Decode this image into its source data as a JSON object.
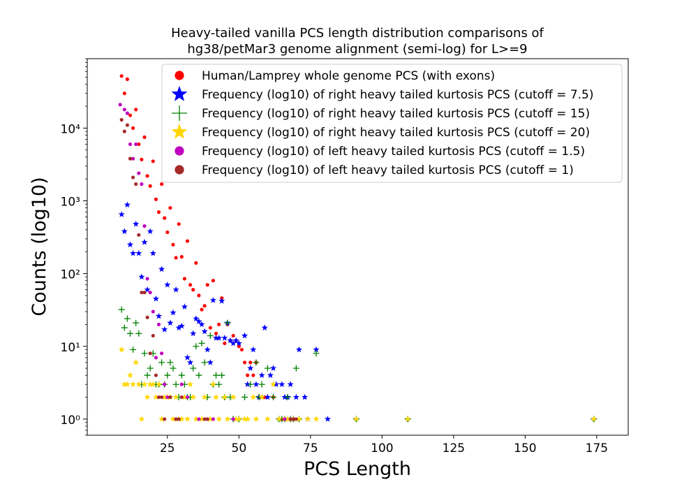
{
  "chart_data": {
    "type": "scatter",
    "title_line1": "Heavy-tailed vanilla PCS length distribution comparisons of",
    "title_line2": "hg38/petMar3 genome alignment (semi-log) for L>=9",
    "xlabel": "PCS Length",
    "ylabel": "Counts (log10)",
    "yscale": "log",
    "xlim": [
      -3,
      186
    ],
    "ylim": [
      0.6,
      90000
    ],
    "xticks": [
      25,
      50,
      75,
      100,
      125,
      150,
      175
    ],
    "yticks": [
      {
        "value": 1,
        "label": "10⁰"
      },
      {
        "value": 10,
        "label": "10¹"
      },
      {
        "value": 100,
        "label": "10²"
      },
      {
        "value": 1000,
        "label": "10³"
      },
      {
        "value": 10000,
        "label": "10⁴"
      }
    ],
    "legend_position": "top-right",
    "series": [
      {
        "name": "Human/Lamprey whole genome PCS (with exons)",
        "marker": "circle",
        "color": "#ff0000",
        "points": [
          [
            9,
            52000
          ],
          [
            10,
            30000
          ],
          [
            11,
            47000
          ],
          [
            12,
            15000
          ],
          [
            13,
            10000
          ],
          [
            14,
            18000
          ],
          [
            15,
            6000
          ],
          [
            16,
            3700
          ],
          [
            17,
            7500
          ],
          [
            18,
            2200
          ],
          [
            19,
            1600
          ],
          [
            20,
            3500
          ],
          [
            21,
            1050
          ],
          [
            22,
            700
          ],
          [
            23,
            1700
          ],
          [
            24,
            580
          ],
          [
            25,
            370
          ],
          [
            26,
            800
          ],
          [
            27,
            250
          ],
          [
            28,
            165
          ],
          [
            29,
            480
          ],
          [
            30,
            170
          ],
          [
            31,
            85
          ],
          [
            32,
            280
          ],
          [
            33,
            70
          ],
          [
            34,
            60
          ],
          [
            35,
            140
          ],
          [
            36,
            50
          ],
          [
            37,
            32
          ],
          [
            38,
            36
          ],
          [
            39,
            70
          ],
          [
            40,
            18
          ],
          [
            41,
            80
          ],
          [
            42,
            15
          ],
          [
            43,
            20
          ],
          [
            44,
            46
          ],
          [
            45,
            11
          ],
          [
            46,
            20
          ],
          [
            47,
            12
          ],
          [
            48,
            14
          ],
          [
            49,
            12
          ],
          [
            50,
            10
          ],
          [
            51,
            9
          ],
          [
            52,
            6
          ],
          [
            53,
            4
          ],
          [
            54,
            6
          ],
          [
            55,
            4
          ],
          [
            56,
            6
          ],
          [
            57,
            2
          ],
          [
            58,
            2
          ],
          [
            59,
            2
          ],
          [
            62,
            2
          ],
          [
            65,
            1
          ],
          [
            66,
            1
          ],
          [
            67,
            1
          ],
          [
            68,
            1
          ]
        ]
      },
      {
        "name": "Frequency (log10) of right heavy tailed kurtosis PCS (cutoff = 7.5)",
        "marker": "star",
        "color": "#0000ff",
        "points": [
          [
            9,
            650
          ],
          [
            10,
            380
          ],
          [
            11,
            880
          ],
          [
            12,
            250
          ],
          [
            13,
            190
          ],
          [
            14,
            480
          ],
          [
            15,
            190
          ],
          [
            16,
            90
          ],
          [
            17,
            270
          ],
          [
            18,
            60
          ],
          [
            19,
            380
          ],
          [
            20,
            190
          ],
          [
            21,
            45
          ],
          [
            22,
            26
          ],
          [
            23,
            115
          ],
          [
            24,
            17
          ],
          [
            25,
            70
          ],
          [
            26,
            21
          ],
          [
            27,
            29
          ],
          [
            28,
            60
          ],
          [
            29,
            18
          ],
          [
            30,
            19
          ],
          [
            31,
            35
          ],
          [
            32,
            7
          ],
          [
            33,
            6
          ],
          [
            34,
            15
          ],
          [
            35,
            24
          ],
          [
            36,
            22
          ],
          [
            37,
            20
          ],
          [
            38,
            16
          ],
          [
            39,
            9
          ],
          [
            40,
            6
          ],
          [
            41,
            43
          ],
          [
            42,
            13
          ],
          [
            43,
            13
          ],
          [
            44,
            42
          ],
          [
            45,
            13
          ],
          [
            46,
            21
          ],
          [
            47,
            12
          ],
          [
            48,
            11
          ],
          [
            49,
            12
          ],
          [
            50,
            11
          ],
          [
            52,
            14
          ],
          [
            53,
            3
          ],
          [
            54,
            5
          ],
          [
            55,
            9
          ],
          [
            56,
            3
          ],
          [
            57,
            2
          ],
          [
            58,
            4
          ],
          [
            59,
            18
          ],
          [
            60,
            2
          ],
          [
            61,
            4
          ],
          [
            62,
            5
          ],
          [
            63,
            3
          ],
          [
            64,
            1
          ],
          [
            65,
            3
          ],
          [
            66,
            2
          ],
          [
            67,
            2
          ],
          [
            68,
            3
          ],
          [
            69,
            1
          ],
          [
            70,
            2
          ],
          [
            71,
            9
          ],
          [
            73,
            2
          ],
          [
            74,
            1
          ],
          [
            77,
            9
          ],
          [
            81,
            1
          ],
          [
            91,
            1
          ],
          [
            109,
            1
          ],
          [
            174,
            1
          ]
        ]
      },
      {
        "name": "Frequency (log10) of right heavy tailed kurtosis PCS (cutoff = 15)",
        "marker": "plus",
        "color": "#008000",
        "points": [
          [
            9,
            32
          ],
          [
            10,
            18
          ],
          [
            11,
            24
          ],
          [
            12,
            15
          ],
          [
            13,
            9
          ],
          [
            14,
            21
          ],
          [
            15,
            15
          ],
          [
            16,
            3
          ],
          [
            17,
            8
          ],
          [
            18,
            4
          ],
          [
            19,
            5
          ],
          [
            20,
            8
          ],
          [
            21,
            3
          ],
          [
            22,
            3
          ],
          [
            23,
            6
          ],
          [
            24,
            3
          ],
          [
            25,
            4
          ],
          [
            26,
            6
          ],
          [
            27,
            5
          ],
          [
            28,
            3
          ],
          [
            29,
            2
          ],
          [
            30,
            4
          ],
          [
            31,
            3
          ],
          [
            32,
            2
          ],
          [
            33,
            2
          ],
          [
            34,
            5
          ],
          [
            35,
            10
          ],
          [
            36,
            4
          ],
          [
            37,
            11
          ],
          [
            38,
            6
          ],
          [
            39,
            2
          ],
          [
            40,
            14
          ],
          [
            41,
            3
          ],
          [
            42,
            4
          ],
          [
            43,
            3
          ],
          [
            44,
            4
          ],
          [
            45,
            2
          ],
          [
            46,
            21
          ],
          [
            47,
            2
          ],
          [
            48,
            1
          ],
          [
            50,
            1
          ],
          [
            52,
            2
          ],
          [
            54,
            3
          ],
          [
            56,
            6
          ],
          [
            57,
            2
          ],
          [
            58,
            3
          ],
          [
            60,
            5
          ],
          [
            62,
            2
          ],
          [
            64,
            1
          ],
          [
            65,
            1
          ],
          [
            66,
            1
          ],
          [
            67,
            2
          ],
          [
            68,
            1
          ],
          [
            69,
            1
          ],
          [
            70,
            5
          ],
          [
            71,
            1
          ],
          [
            77,
            8
          ],
          [
            91,
            1
          ],
          [
            109,
            1
          ],
          [
            174,
            1
          ]
        ]
      },
      {
        "name": "Frequency (log10) of right heavy tailed kurtosis PCS (cutoff = 20)",
        "marker": "star",
        "color": "#ffd700",
        "points": [
          [
            9,
            9
          ],
          [
            10,
            3
          ],
          [
            11,
            3
          ],
          [
            12,
            4
          ],
          [
            13,
            3
          ],
          [
            14,
            6
          ],
          [
            15,
            3
          ],
          [
            16,
            1
          ],
          [
            17,
            3
          ],
          [
            18,
            2
          ],
          [
            19,
            3
          ],
          [
            20,
            3
          ],
          [
            21,
            2
          ],
          [
            22,
            3
          ],
          [
            23,
            1
          ],
          [
            24,
            2
          ],
          [
            25,
            2
          ],
          [
            26,
            2
          ],
          [
            27,
            1
          ],
          [
            28,
            2
          ],
          [
            29,
            1
          ],
          [
            30,
            1
          ],
          [
            31,
            2
          ],
          [
            32,
            1
          ],
          [
            33,
            3
          ],
          [
            34,
            2
          ],
          [
            35,
            1
          ],
          [
            37,
            1
          ],
          [
            38,
            2
          ],
          [
            40,
            1
          ],
          [
            41,
            3
          ],
          [
            42,
            2
          ],
          [
            43,
            1
          ],
          [
            45,
            2
          ],
          [
            46,
            1
          ],
          [
            48,
            2
          ],
          [
            49,
            1
          ],
          [
            50,
            1
          ],
          [
            52,
            1
          ],
          [
            53,
            1
          ],
          [
            55,
            2
          ],
          [
            56,
            1
          ],
          [
            58,
            2
          ],
          [
            60,
            1
          ],
          [
            62,
            3
          ],
          [
            64,
            1
          ],
          [
            66,
            1
          ],
          [
            67,
            1
          ],
          [
            69,
            1
          ],
          [
            71,
            1
          ],
          [
            74,
            1
          ],
          [
            77,
            1
          ],
          [
            91,
            1
          ],
          [
            109,
            1
          ],
          [
            174,
            1
          ]
        ]
      },
      {
        "name": "Frequency (log10) of left heavy tailed kurtosis PCS (cutoff = 1.5)",
        "marker": "circle",
        "color": "#bf00bf",
        "points": [
          [
            8.5,
            21000
          ],
          [
            10,
            18000
          ],
          [
            11,
            16000
          ],
          [
            12,
            6000
          ],
          [
            13,
            3800
          ],
          [
            14,
            6000
          ],
          [
            15,
            2400
          ],
          [
            16,
            1700
          ],
          [
            17,
            450
          ],
          [
            18,
            85
          ],
          [
            19,
            55
          ],
          [
            20,
            30
          ],
          [
            21,
            7
          ],
          [
            22,
            20
          ],
          [
            23,
            8
          ],
          [
            24,
            3
          ],
          [
            25,
            2
          ],
          [
            28,
            1
          ],
          [
            30,
            3
          ],
          [
            32,
            2
          ],
          [
            36,
            1
          ],
          [
            39,
            1
          ],
          [
            41,
            1
          ],
          [
            48,
            1
          ],
          [
            66,
            1
          ],
          [
            69,
            1
          ]
        ]
      },
      {
        "name": "Frequency (log10) of left heavy tailed kurtosis PCS (cutoff = 1)",
        "marker": "circle",
        "color": "#a52a2a",
        "points": [
          [
            9,
            13000
          ],
          [
            10,
            9000
          ],
          [
            11,
            11000
          ],
          [
            12,
            3800
          ],
          [
            13,
            2100
          ],
          [
            14,
            1700
          ],
          [
            15,
            340
          ],
          [
            16,
            55
          ],
          [
            17,
            55
          ],
          [
            18,
            25
          ],
          [
            19,
            8
          ],
          [
            20,
            14
          ],
          [
            21,
            4
          ],
          [
            22,
            2
          ],
          [
            23,
            2
          ],
          [
            24,
            1
          ],
          [
            26,
            2
          ],
          [
            28,
            1
          ],
          [
            29,
            1
          ],
          [
            30,
            2
          ],
          [
            38,
            1
          ],
          [
            39,
            1
          ],
          [
            68,
            1
          ],
          [
            69,
            1
          ],
          [
            70,
            1
          ]
        ]
      }
    ]
  }
}
